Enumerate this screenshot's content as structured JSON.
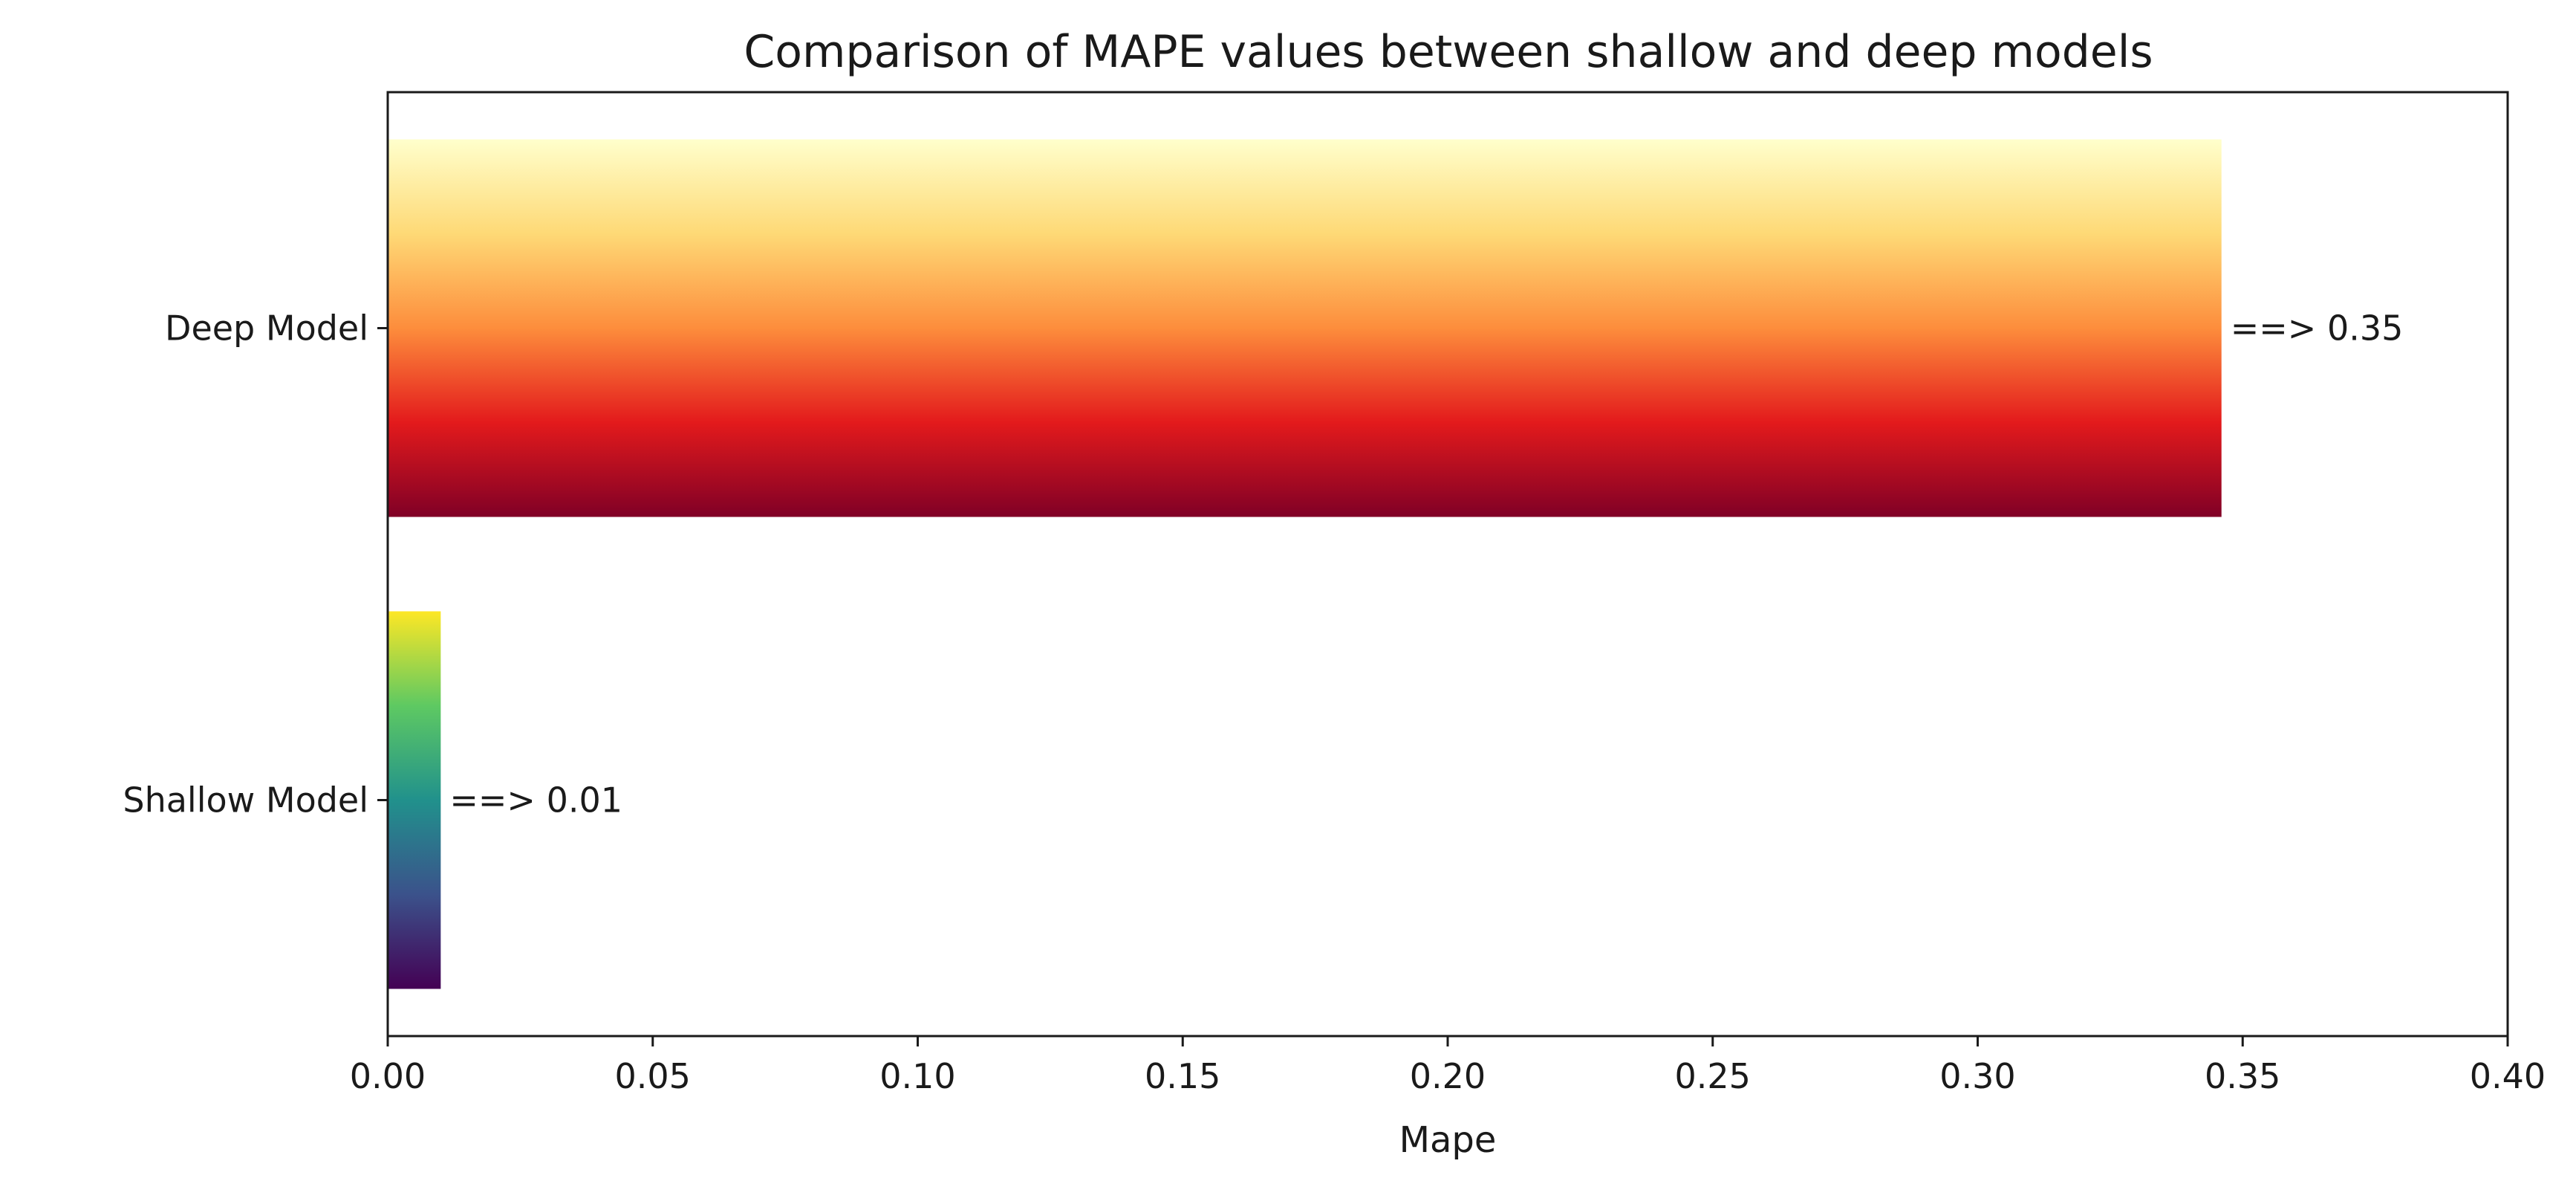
{
  "chart_data": {
    "type": "bar",
    "orientation": "horizontal",
    "title": "Comparison of MAPE values between shallow and deep models",
    "xlabel": "Mape",
    "ylabel": "",
    "xlim": [
      0,
      0.4
    ],
    "x_ticks": [
      0.0,
      0.05,
      0.1,
      0.15,
      0.2,
      0.25,
      0.3,
      0.35,
      0.4
    ],
    "x_tick_labels": [
      "0.00",
      "0.05",
      "0.10",
      "0.15",
      "0.20",
      "0.25",
      "0.30",
      "0.35",
      "0.40"
    ],
    "grid": false,
    "legend": "none",
    "categories": [
      "Shallow Model",
      "Deep Model"
    ],
    "values": [
      0.01,
      0.346
    ],
    "data_labels": [
      "==> 0.01",
      "==> 0.35"
    ],
    "bar_gradients": [
      {
        "category": "Shallow Model",
        "colormap": "viridis",
        "stops_bottom_to_top": [
          "#440154",
          "#3b528b",
          "#21918c",
          "#5ec962",
          "#fde725"
        ]
      },
      {
        "category": "Deep Model",
        "colormap": "YlOrRd",
        "stops_bottom_to_top": [
          "#800026",
          "#e31a1c",
          "#fd8d3c",
          "#fed976",
          "#ffffcc"
        ]
      }
    ]
  }
}
